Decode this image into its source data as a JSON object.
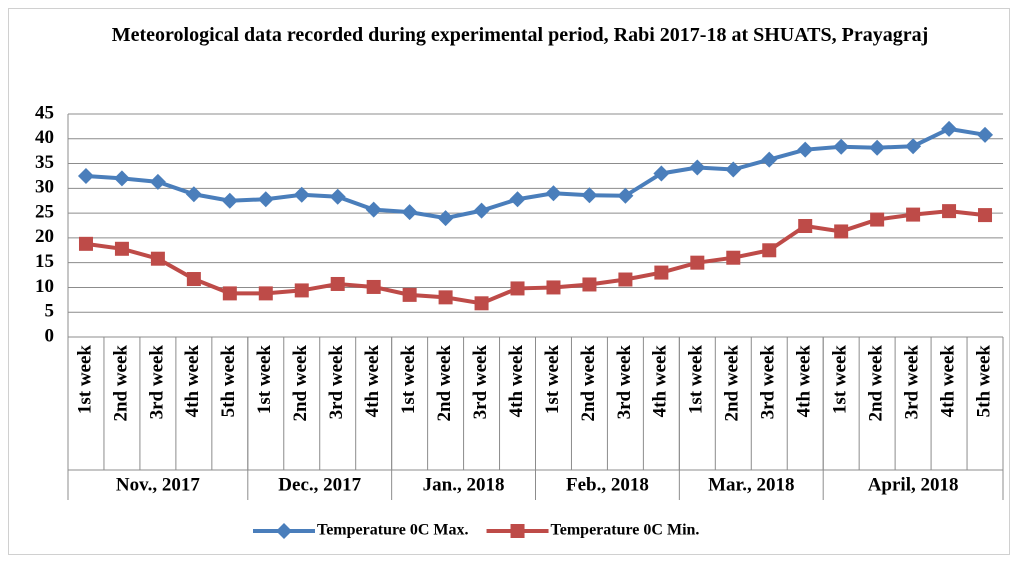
{
  "chart_data": {
    "type": "line",
    "title": "Meteorological data recorded during experimental period, Rabi 2017-18 at SHUATS, Prayagraj",
    "categories": [
      "1st week",
      "2nd week",
      "3rd week",
      "4th week",
      "5th week",
      "1st week",
      "2nd week",
      "3rd week",
      "4th week",
      "1st week",
      "2nd week",
      "3rd week",
      "4th week",
      "1st week",
      "2nd week",
      "3rd week",
      "4th week",
      "1st week",
      "2nd week",
      "3rd week",
      "4th week",
      "1st week",
      "2nd week",
      "3rd week",
      "4th week",
      "5th week"
    ],
    "groups": [
      {
        "label": "Nov., 2017",
        "span": 5
      },
      {
        "label": "Dec., 2017",
        "span": 4
      },
      {
        "label": "Jan., 2018",
        "span": 4
      },
      {
        "label": "Feb., 2018",
        "span": 4
      },
      {
        "label": "Mar., 2018",
        "span": 4
      },
      {
        "label": "April,  2018",
        "span": 5
      }
    ],
    "series": [
      {
        "name": "Temperature 0C Max.",
        "color": "#4a7ebb",
        "marker": "diamond",
        "values": [
          32.5,
          32,
          31.3,
          28.8,
          27.5,
          27.8,
          28.7,
          28.3,
          25.7,
          25.2,
          24,
          25.5,
          27.8,
          29,
          28.6,
          28.5,
          33,
          34.2,
          33.8,
          35.8,
          37.8,
          38.4,
          38.2,
          38.5,
          42,
          40.8
        ]
      },
      {
        "name": "Temperature 0C Min.",
        "color": "#be4b48",
        "marker": "square",
        "values": [
          18.8,
          17.8,
          15.8,
          11.7,
          8.8,
          8.8,
          9.4,
          10.7,
          10.1,
          8.5,
          8,
          6.8,
          9.8,
          10,
          10.6,
          11.6,
          13,
          15,
          16,
          17.5,
          22.4,
          21.3,
          23.7,
          24.7,
          25.4,
          24.6
        ]
      }
    ],
    "ylim": [
      0,
      45
    ],
    "yticks": [
      0,
      5,
      10,
      15,
      20,
      25,
      30,
      35,
      40,
      45
    ],
    "grid": true,
    "legend": "bottom"
  }
}
